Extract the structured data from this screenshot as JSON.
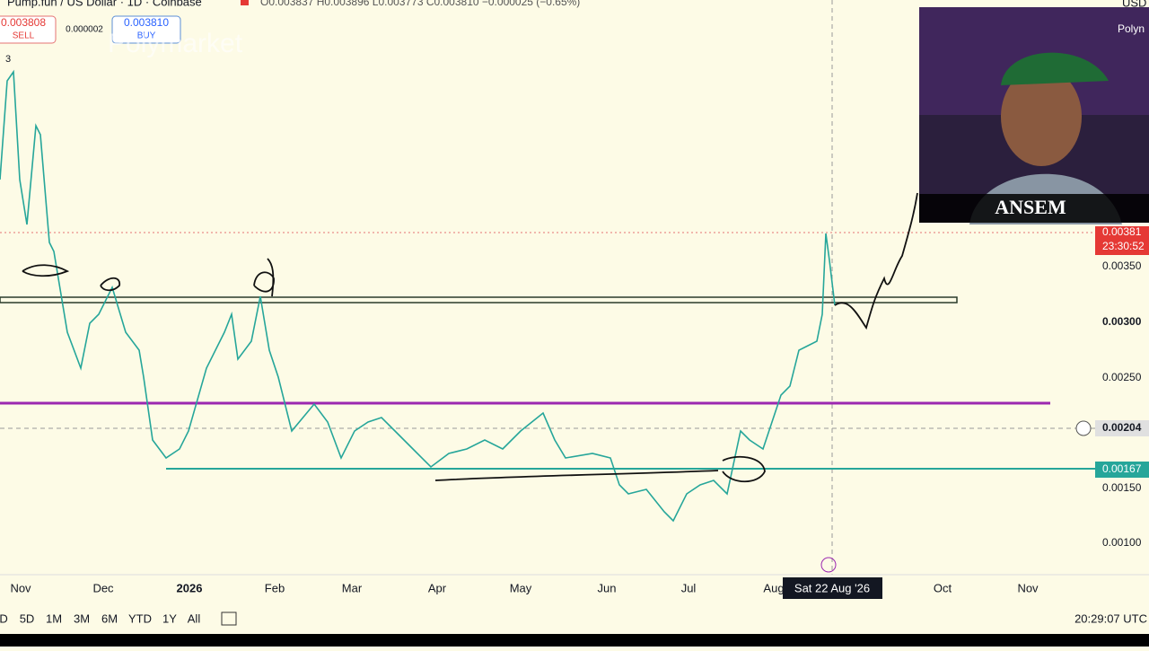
{
  "header": {
    "symbol": "Pump.fun / US Dollar · 1D · Coinbase",
    "ohlc": "O0.003837 H0.003896 L0.003773 C0.003810 −0.000025 (−0.65%)"
  },
  "trade": {
    "sell_price": "0.003808",
    "sell_label": "SELL",
    "spread": "0.000002",
    "buy_price": "0.003810",
    "buy_label": "BUY"
  },
  "indicator_count": "3",
  "price_axis": {
    "currency": "USD",
    "labels": [
      "0.00350",
      "0.00300",
      "0.00250",
      "0.00150",
      "0.00100"
    ],
    "current_price": "0.00381",
    "countdown": "23:30:52",
    "crosshair_price": "0.00204",
    "green_level": "0.00167"
  },
  "time_axis": {
    "labels": [
      "Nov",
      "Dec",
      "2026",
      "Feb",
      "Mar",
      "Apr",
      "May",
      "Jun",
      "Jul",
      "Aug",
      "Oct",
      "Nov"
    ],
    "crosshair_date": "Sat 22 Aug '26"
  },
  "ranges": [
    "D",
    "5D",
    "1M",
    "3M",
    "6M",
    "YTD",
    "1Y",
    "All"
  ],
  "clock": "20:29:07 UTC",
  "webcam": {
    "name": "ANSEM",
    "watermark": "Polymarket",
    "badge": "Polyn"
  }
}
